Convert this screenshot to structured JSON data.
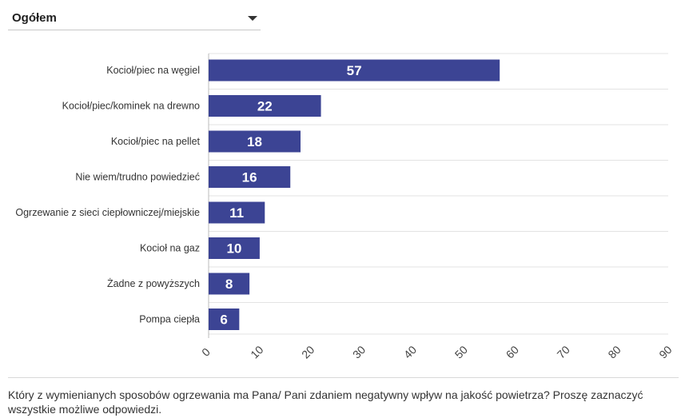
{
  "filter": {
    "selected": "Ogółem"
  },
  "chart_data": {
    "type": "bar",
    "orientation": "horizontal",
    "categories": [
      "Kocioł/piec na węgiel",
      "Kocioł/piec/kominek na drewno",
      "Kocioł/piec na pellet",
      "Nie wiem/trudno powiedzieć",
      "Ogrzewanie z sieci ciepłowniczej/miejskie",
      "Kocioł na gaz",
      "Żadne z powyższych",
      "Pompa ciepła"
    ],
    "values": [
      57,
      22,
      18,
      16,
      11,
      10,
      8,
      6
    ],
    "xlim": [
      0,
      90
    ],
    "xticks": [
      0,
      10,
      20,
      30,
      40,
      50,
      60,
      70,
      80,
      90
    ],
    "grid": true,
    "bar_color": "#3c4494",
    "label_color": "#ffffff"
  },
  "caption": "Który z wymienianych sposobów ogrzewania ma Pana/ Pani zdaniem negatywny wpływ na jakość powietrza? Proszę zaznaczyć wszystkie możliwe odpowiedzi."
}
